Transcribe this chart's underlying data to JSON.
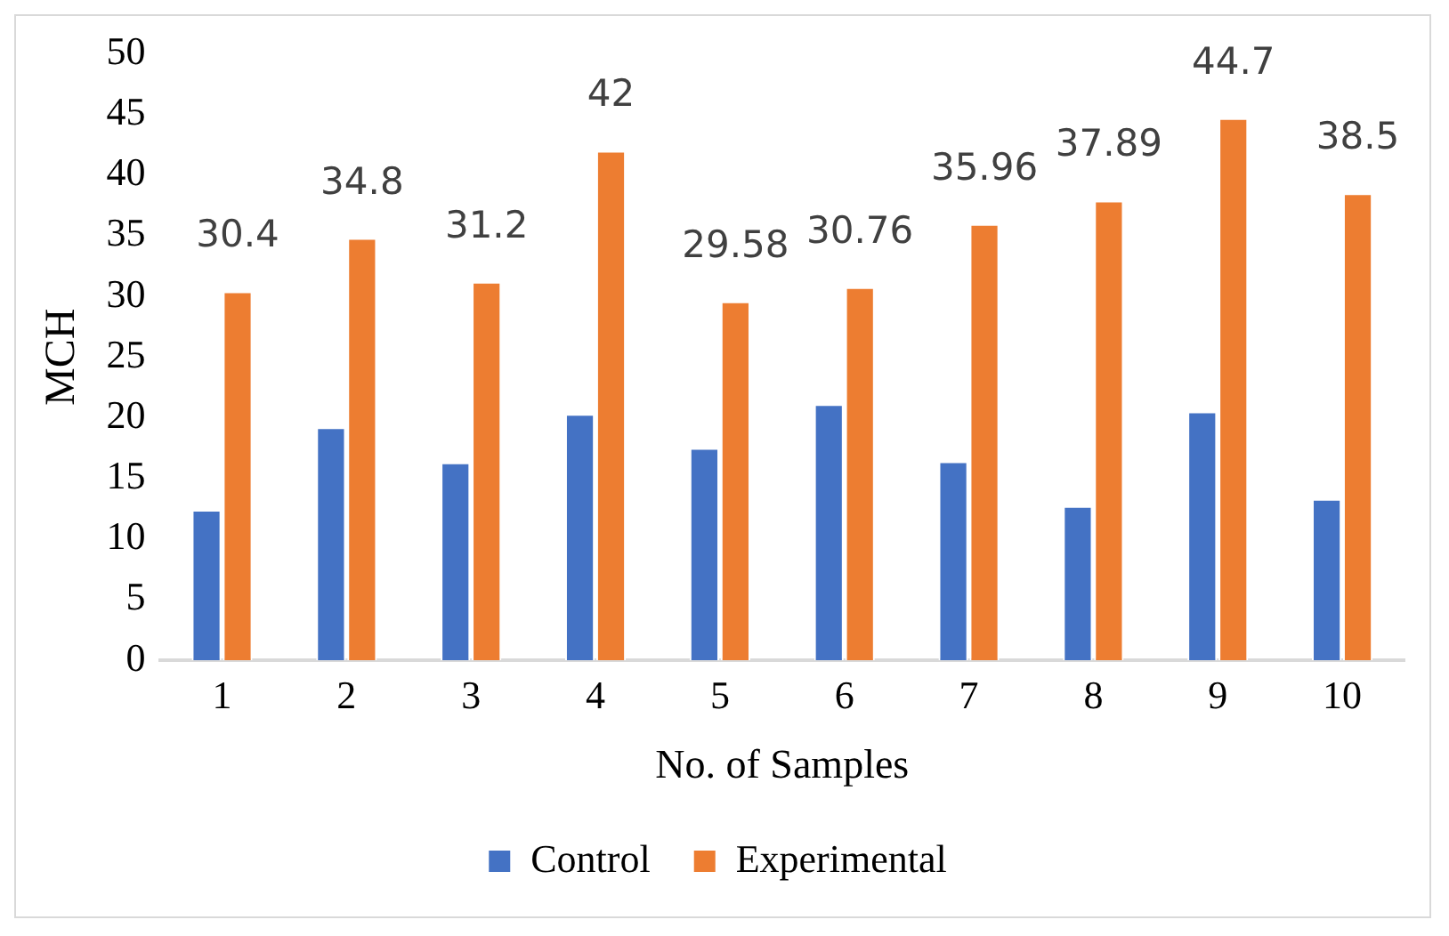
{
  "chart_data": {
    "type": "bar",
    "xlabel": "No. of Samples",
    "ylabel": "MCH",
    "categories": [
      "1",
      "2",
      "3",
      "4",
      "5",
      "6",
      "7",
      "8",
      "9",
      "10"
    ],
    "series": [
      {
        "name": "Control",
        "color": "#4472c4",
        "values": [
          12.4,
          19.2,
          16.3,
          20.3,
          17.5,
          21.1,
          16.4,
          12.7,
          20.5,
          13.3
        ]
      },
      {
        "name": "Experimental",
        "color": "#ed7d31",
        "values": [
          30.4,
          34.8,
          31.2,
          42,
          29.58,
          30.76,
          35.96,
          37.89,
          44.7,
          38.5
        ],
        "value_labels": [
          "30.4",
          "34.8",
          "31.2",
          "42",
          "29.58",
          "30.76",
          "35.96",
          "37.89",
          "44.7",
          "38.5"
        ]
      }
    ],
    "ylim": [
      0,
      50
    ],
    "yticks": [
      0,
      5,
      10,
      15,
      20,
      25,
      30,
      35,
      40,
      45,
      50
    ],
    "grid": false,
    "legend": "bottom"
  }
}
